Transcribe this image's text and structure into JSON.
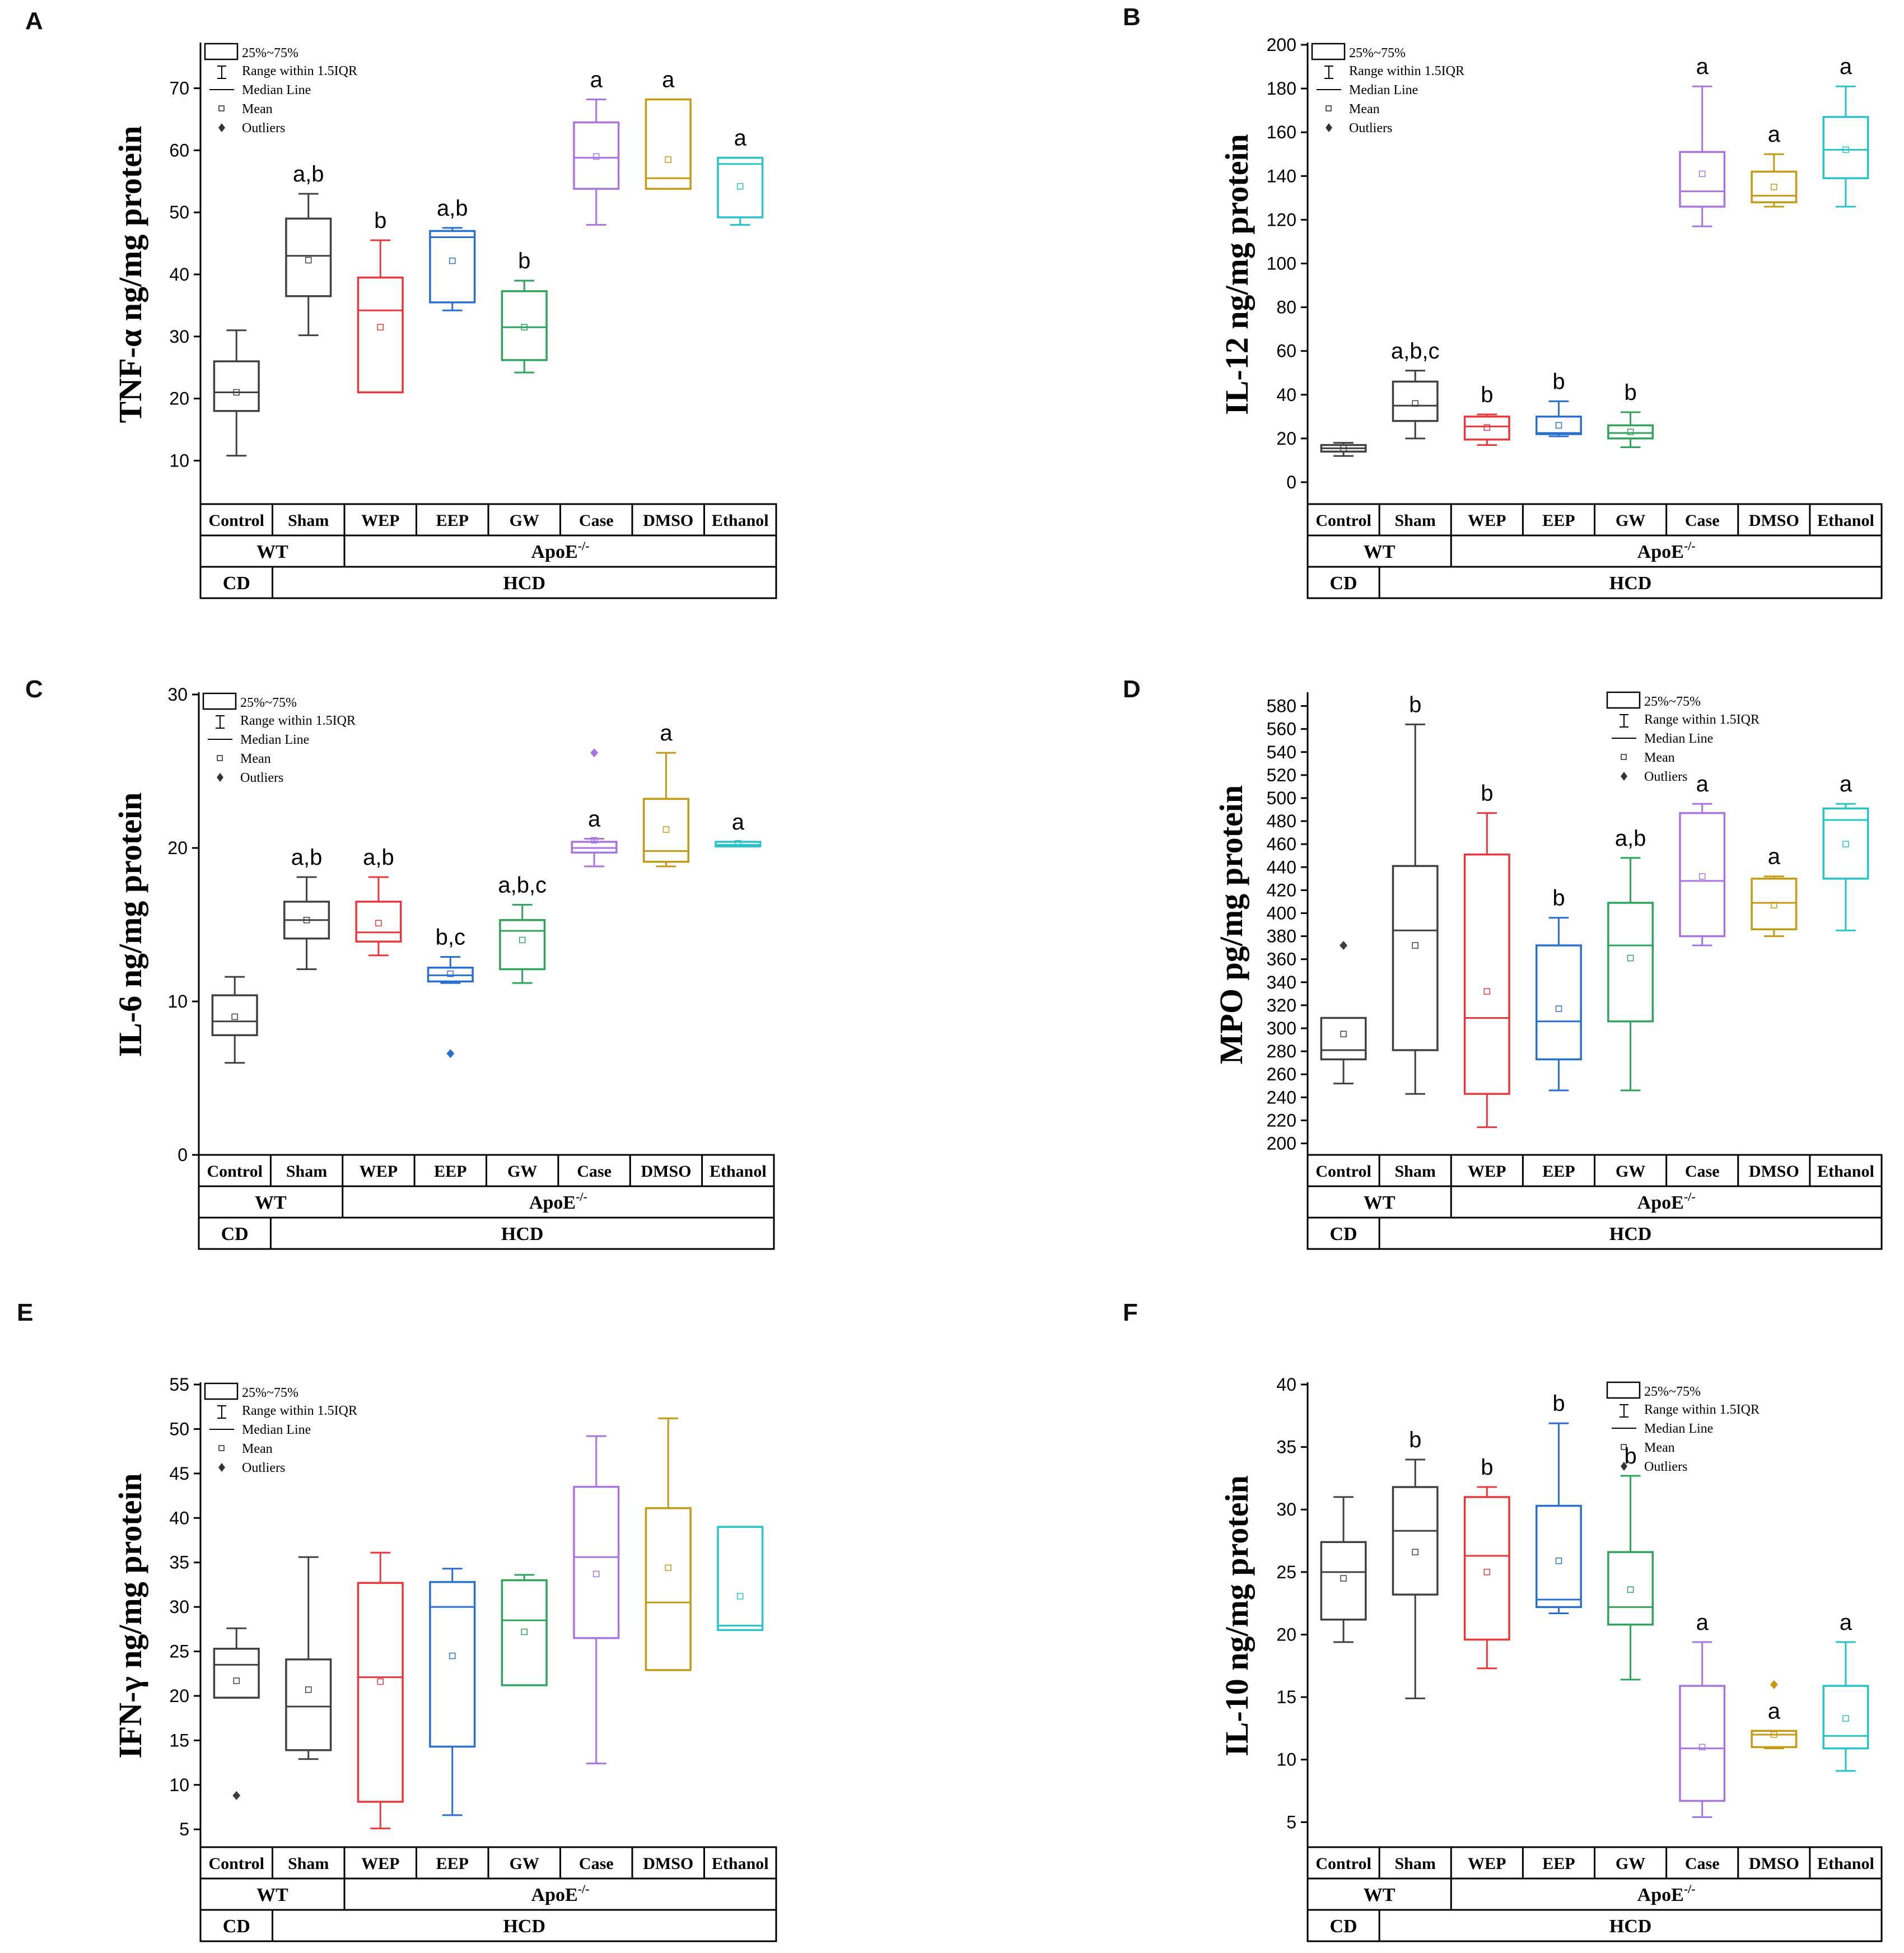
{
  "figure": {
    "categories": [
      "Control",
      "Sham",
      "WEP",
      "EEP",
      "GW",
      "Case",
      "DMSO",
      "Ethanol"
    ],
    "strain_row": [
      {
        "label": "WT",
        "span": [
          0,
          1
        ]
      },
      {
        "label": "ApoE",
        "sup": "-/-",
        "span": [
          2,
          7
        ]
      }
    ],
    "diet_row": [
      {
        "label": "CD",
        "span": [
          0,
          0
        ]
      },
      {
        "label": "HCD",
        "span": [
          1,
          7
        ]
      }
    ],
    "legend": {
      "box": "25%~75%",
      "range": "Range within 1.5IQR",
      "median": "Median Line",
      "mean": "Mean",
      "outliers": "Outliers"
    },
    "group_colors": [
      "#404040",
      "#404040",
      "#e8383d",
      "#2b6fce",
      "#2fa35c",
      "#a874e0",
      "#c49a14",
      "#28c3c8"
    ]
  },
  "chart_data": [
    {
      "panel": "A",
      "type": "box",
      "ylabel": "TNF-α ng/mg protein",
      "ylim": [
        3,
        77
      ],
      "yticks": [
        10,
        20,
        30,
        40,
        50,
        60,
        70
      ],
      "legend_position": "top-left",
      "boxes": [
        {
          "group": "Control",
          "whisker_low": 10.8,
          "q1": 18,
          "median": 21,
          "q3": 26,
          "whisker_high": 31,
          "mean": 21,
          "outliers": [],
          "sig": ""
        },
        {
          "group": "Sham",
          "whisker_low": 30.2,
          "q1": 36.5,
          "median": 43,
          "q3": 49,
          "whisker_high": 53,
          "mean": 42.3,
          "outliers": [],
          "sig": "a,b"
        },
        {
          "group": "WEP",
          "whisker_low": 21,
          "q1": 21,
          "median": 34.2,
          "q3": 39.5,
          "whisker_high": 45.5,
          "mean": 31.5,
          "outliers": [],
          "sig": "b"
        },
        {
          "group": "EEP",
          "whisker_low": 34.2,
          "q1": 35.5,
          "median": 46,
          "q3": 47,
          "whisker_high": 47.5,
          "mean": 42.2,
          "outliers": [],
          "sig": "a,b"
        },
        {
          "group": "GW",
          "whisker_low": 24.2,
          "q1": 26.2,
          "median": 31.5,
          "q3": 37.3,
          "whisker_high": 39,
          "mean": 31.5,
          "outliers": [],
          "sig": "b"
        },
        {
          "group": "Case",
          "whisker_low": 48,
          "q1": 53.8,
          "median": 58.8,
          "q3": 64.5,
          "whisker_high": 68.2,
          "mean": 59,
          "outliers": [],
          "sig": "a"
        },
        {
          "group": "DMSO",
          "whisker_low": 53.8,
          "q1": 53.8,
          "median": 55.5,
          "q3": 68.2,
          "whisker_high": 68.2,
          "mean": 58.5,
          "outliers": [],
          "sig": "a"
        },
        {
          "group": "Ethanol",
          "whisker_low": 48,
          "q1": 49.2,
          "median": 57.8,
          "q3": 58.8,
          "whisker_high": 58.8,
          "mean": 54.2,
          "outliers": [],
          "sig": "a"
        }
      ]
    },
    {
      "panel": "B",
      "type": "box",
      "ylabel": "IL-12 ng/mg protein",
      "ylim": [
        -10,
        200
      ],
      "yticks": [
        0,
        20,
        40,
        60,
        80,
        100,
        120,
        140,
        160,
        180,
        200
      ],
      "legend_position": "top-left",
      "boxes": [
        {
          "group": "Control",
          "whisker_low": 12,
          "q1": 14,
          "median": 15.5,
          "q3": 17,
          "whisker_high": 18,
          "mean": 15.5,
          "outliers": [],
          "sig": ""
        },
        {
          "group": "Sham",
          "whisker_low": 20,
          "q1": 28,
          "median": 35,
          "q3": 46,
          "whisker_high": 51,
          "mean": 36,
          "outliers": [],
          "sig": "a,b,c"
        },
        {
          "group": "WEP",
          "whisker_low": 17,
          "q1": 19.5,
          "median": 25.5,
          "q3": 30,
          "whisker_high": 31,
          "mean": 25,
          "outliers": [],
          "sig": "b"
        },
        {
          "group": "EEP",
          "whisker_low": 21,
          "q1": 22,
          "median": 22.5,
          "q3": 30,
          "whisker_high": 37,
          "mean": 26,
          "outliers": [],
          "sig": "b"
        },
        {
          "group": "GW",
          "whisker_low": 16,
          "q1": 20,
          "median": 22.5,
          "q3": 26,
          "whisker_high": 32,
          "mean": 23,
          "outliers": [],
          "sig": "b"
        },
        {
          "group": "Case",
          "whisker_low": 117,
          "q1": 126,
          "median": 133,
          "q3": 151,
          "whisker_high": 181,
          "mean": 141,
          "outliers": [],
          "sig": "a"
        },
        {
          "group": "DMSO",
          "whisker_low": 126,
          "q1": 128,
          "median": 131,
          "q3": 142,
          "whisker_high": 150,
          "mean": 135,
          "outliers": [],
          "sig": "a"
        },
        {
          "group": "Ethanol",
          "whisker_low": 126,
          "q1": 139,
          "median": 152,
          "q3": 167,
          "whisker_high": 181,
          "mean": 152,
          "outliers": [],
          "sig": "a"
        }
      ]
    },
    {
      "panel": "C",
      "type": "box",
      "ylabel": "IL-6 ng/mg protein",
      "ylim": [
        0,
        30
      ],
      "yticks": [
        0,
        10,
        20,
        30
      ],
      "legend_position": "top-left",
      "boxes": [
        {
          "group": "Control",
          "whisker_low": 6,
          "q1": 7.8,
          "median": 8.7,
          "q3": 10.4,
          "whisker_high": 11.6,
          "mean": 9,
          "outliers": [],
          "sig": ""
        },
        {
          "group": "Sham",
          "whisker_low": 12.1,
          "q1": 14.1,
          "median": 15.3,
          "q3": 16.5,
          "whisker_high": 18.1,
          "mean": 15.3,
          "outliers": [],
          "sig": "a,b"
        },
        {
          "group": "WEP",
          "whisker_low": 13,
          "q1": 13.9,
          "median": 14.5,
          "q3": 16.5,
          "whisker_high": 18.1,
          "mean": 15.1,
          "outliers": [],
          "sig": "a,b"
        },
        {
          "group": "EEP",
          "whisker_low": 11.2,
          "q1": 11.3,
          "median": 11.7,
          "q3": 12.2,
          "whisker_high": 12.9,
          "mean": 11.8,
          "outliers": [
            6.6
          ],
          "sig": "b,c"
        },
        {
          "group": "GW",
          "whisker_low": 11.2,
          "q1": 12.1,
          "median": 14.6,
          "q3": 15.3,
          "whisker_high": 16.3,
          "mean": 14,
          "outliers": [],
          "sig": "a,b,c"
        },
        {
          "group": "Case",
          "whisker_low": 18.8,
          "q1": 19.7,
          "median": 20,
          "q3": 20.4,
          "whisker_high": 20.6,
          "mean": 20.5,
          "outliers": [
            26.2
          ],
          "sig": "a"
        },
        {
          "group": "DMSO",
          "whisker_low": 18.8,
          "q1": 19.1,
          "median": 19.8,
          "q3": 23.2,
          "whisker_high": 26.2,
          "mean": 21.2,
          "outliers": [],
          "sig": "a"
        },
        {
          "group": "Ethanol",
          "whisker_low": 20.1,
          "q1": 20.1,
          "median": 20.2,
          "q3": 20.4,
          "whisker_high": 20.4,
          "mean": 20.3,
          "outliers": [],
          "sig": "a"
        }
      ]
    },
    {
      "panel": "D",
      "type": "box",
      "ylabel": "MPO pg/mg protein",
      "ylim": [
        190,
        590
      ],
      "yticks": [
        200,
        220,
        240,
        260,
        280,
        300,
        320,
        340,
        360,
        380,
        400,
        420,
        440,
        460,
        480,
        500,
        520,
        540,
        560,
        580
      ],
      "legend_position": "top-right",
      "boxes": [
        {
          "group": "Control",
          "whisker_low": 252,
          "q1": 273,
          "median": 281,
          "q3": 309,
          "whisker_high": 309,
          "mean": 295,
          "outliers": [
            372
          ],
          "sig": ""
        },
        {
          "group": "Sham",
          "whisker_low": 243,
          "q1": 281,
          "median": 385,
          "q3": 441,
          "whisker_high": 564,
          "mean": 372,
          "outliers": [],
          "sig": "b"
        },
        {
          "group": "WEP",
          "whisker_low": 214,
          "q1": 243,
          "median": 309,
          "q3": 451,
          "whisker_high": 487,
          "mean": 332,
          "outliers": [],
          "sig": "b"
        },
        {
          "group": "EEP",
          "whisker_low": 246,
          "q1": 273,
          "median": 306,
          "q3": 372,
          "whisker_high": 396,
          "mean": 317,
          "outliers": [],
          "sig": "b"
        },
        {
          "group": "GW",
          "whisker_low": 246,
          "q1": 306,
          "median": 372,
          "q3": 409,
          "whisker_high": 448,
          "mean": 361,
          "outliers": [],
          "sig": "a,b"
        },
        {
          "group": "Case",
          "whisker_low": 372,
          "q1": 380,
          "median": 428,
          "q3": 487,
          "whisker_high": 495,
          "mean": 432,
          "outliers": [],
          "sig": "a"
        },
        {
          "group": "DMSO",
          "whisker_low": 380,
          "q1": 386,
          "median": 409,
          "q3": 430,
          "whisker_high": 432,
          "mean": 407,
          "outliers": [],
          "sig": "a"
        },
        {
          "group": "Ethanol",
          "whisker_low": 385,
          "q1": 430,
          "median": 481,
          "q3": 491,
          "whisker_high": 495,
          "mean": 460,
          "outliers": [],
          "sig": "a"
        }
      ]
    },
    {
      "panel": "E",
      "type": "box",
      "ylabel": "IFN-γ ng/mg protein",
      "ylim": [
        3,
        55
      ],
      "yticks": [
        5,
        10,
        15,
        20,
        25,
        30,
        35,
        40,
        45,
        50,
        55
      ],
      "legend_position": "top-left",
      "boxes": [
        {
          "group": "Control",
          "whisker_low": 19.8,
          "q1": 19.8,
          "median": 23.5,
          "q3": 25.3,
          "whisker_high": 27.6,
          "mean": 21.7,
          "outliers": [
            8.8
          ],
          "sig": ""
        },
        {
          "group": "Sham",
          "whisker_low": 12.9,
          "q1": 13.9,
          "median": 18.8,
          "q3": 24.1,
          "whisker_high": 35.6,
          "mean": 20.7,
          "outliers": [],
          "sig": ""
        },
        {
          "group": "WEP",
          "whisker_low": 5.1,
          "q1": 8.1,
          "median": 22.1,
          "q3": 32.7,
          "whisker_high": 36.1,
          "mean": 21.6,
          "outliers": [],
          "sig": ""
        },
        {
          "group": "EEP",
          "whisker_low": 6.6,
          "q1": 14.3,
          "median": 30,
          "q3": 32.8,
          "whisker_high": 34.3,
          "mean": 24.5,
          "outliers": [],
          "sig": ""
        },
        {
          "group": "GW",
          "whisker_low": 21.2,
          "q1": 21.2,
          "median": 28.5,
          "q3": 33,
          "whisker_high": 33.6,
          "mean": 27.2,
          "outliers": [],
          "sig": ""
        },
        {
          "group": "Case",
          "whisker_low": 12.4,
          "q1": 26.5,
          "median": 35.6,
          "q3": 43.5,
          "whisker_high": 49.2,
          "mean": 33.7,
          "outliers": [],
          "sig": ""
        },
        {
          "group": "DMSO",
          "whisker_low": 22.9,
          "q1": 22.9,
          "median": 30.5,
          "q3": 41.1,
          "whisker_high": 51.2,
          "mean": 34.4,
          "outliers": [],
          "sig": ""
        },
        {
          "group": "Ethanol",
          "whisker_low": 27.4,
          "q1": 27.4,
          "median": 27.9,
          "q3": 39,
          "whisker_high": 39,
          "mean": 31.2,
          "outliers": [],
          "sig": ""
        }
      ]
    },
    {
      "panel": "F",
      "type": "box",
      "ylabel": "IL-10 ng/mg protein",
      "ylim": [
        3,
        40
      ],
      "yticks": [
        5,
        10,
        15,
        20,
        25,
        30,
        35,
        40
      ],
      "legend_position": "top-right",
      "boxes": [
        {
          "group": "Control",
          "whisker_low": 19.4,
          "q1": 21.2,
          "median": 25,
          "q3": 27.4,
          "whisker_high": 31,
          "mean": 24.5,
          "outliers": [],
          "sig": ""
        },
        {
          "group": "Sham",
          "whisker_low": 14.9,
          "q1": 23.2,
          "median": 28.3,
          "q3": 31.8,
          "whisker_high": 34,
          "mean": 26.6,
          "outliers": [],
          "sig": "b"
        },
        {
          "group": "WEP",
          "whisker_low": 17.3,
          "q1": 19.6,
          "median": 26.3,
          "q3": 31,
          "whisker_high": 31.8,
          "mean": 25,
          "outliers": [],
          "sig": "b"
        },
        {
          "group": "EEP",
          "whisker_low": 21.7,
          "q1": 22.2,
          "median": 22.8,
          "q3": 30.3,
          "whisker_high": 36.9,
          "mean": 25.9,
          "outliers": [],
          "sig": "b"
        },
        {
          "group": "GW",
          "whisker_low": 16.4,
          "q1": 20.8,
          "median": 22.2,
          "q3": 26.6,
          "whisker_high": 32.7,
          "mean": 23.6,
          "outliers": [],
          "sig": "b"
        },
        {
          "group": "Case",
          "whisker_low": 5.4,
          "q1": 6.7,
          "median": 10.9,
          "q3": 15.9,
          "whisker_high": 19.4,
          "mean": 11,
          "outliers": [],
          "sig": "a"
        },
        {
          "group": "DMSO",
          "whisker_low": 10.9,
          "q1": 11,
          "median": 12,
          "q3": 12.3,
          "whisker_high": 12.3,
          "mean": 12,
          "outliers": [
            16
          ],
          "sig": "a"
        },
        {
          "group": "Ethanol",
          "whisker_low": 9.1,
          "q1": 10.9,
          "median": 11.9,
          "q3": 15.9,
          "whisker_high": 19.4,
          "mean": 13.3,
          "outliers": [],
          "sig": "a"
        }
      ]
    }
  ]
}
